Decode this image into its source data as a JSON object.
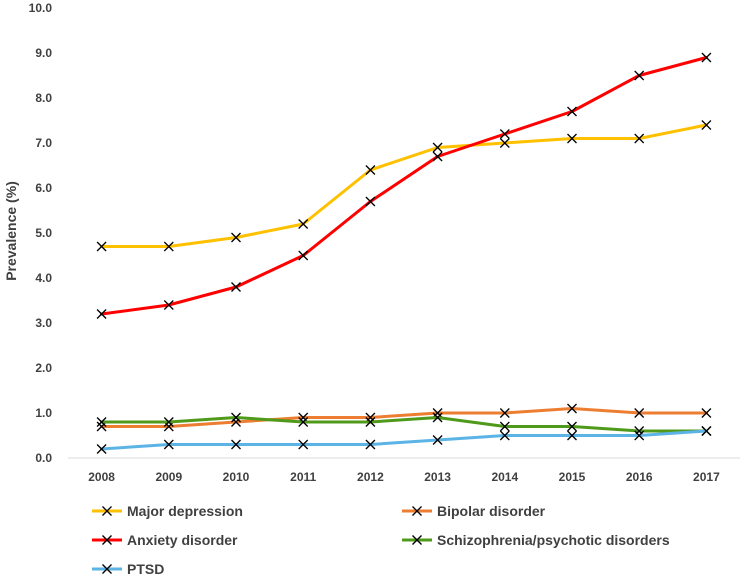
{
  "chart_data": {
    "type": "line",
    "ylabel": "Prevalence (%)",
    "ylim": [
      0,
      10
    ],
    "y_ticks": [
      "0.0",
      "1.0",
      "2.0",
      "3.0",
      "4.0",
      "5.0",
      "6.0",
      "7.0",
      "8.0",
      "9.0",
      "10.0"
    ],
    "x": [
      "2008",
      "2009",
      "2010",
      "2011",
      "2012",
      "2013",
      "2014",
      "2015",
      "2016",
      "2017"
    ],
    "grid": false,
    "legend_position": "bottom",
    "series": [
      {
        "name": "Major depression",
        "color": "#FFC000",
        "values": [
          4.7,
          4.7,
          4.9,
          5.2,
          6.4,
          6.9,
          7.0,
          7.1,
          7.1,
          7.4
        ]
      },
      {
        "name": "Bipolar disorder",
        "color": "#ED7D31",
        "values": [
          0.7,
          0.7,
          0.8,
          0.9,
          0.9,
          1.0,
          1.0,
          1.1,
          1.0,
          1.0
        ]
      },
      {
        "name": "Anxiety disorder",
        "color": "#FF0000",
        "values": [
          3.2,
          3.4,
          3.8,
          4.5,
          5.7,
          6.7,
          7.2,
          7.7,
          8.5,
          8.9
        ]
      },
      {
        "name": "Schizophrenia/psychotic disorders",
        "color": "#4F9A1A",
        "values": [
          0.8,
          0.8,
          0.9,
          0.8,
          0.8,
          0.9,
          0.7,
          0.7,
          0.6,
          0.6
        ]
      },
      {
        "name": "PTSD",
        "color": "#5BB4E5",
        "values": [
          0.2,
          0.3,
          0.3,
          0.3,
          0.3,
          0.4,
          0.5,
          0.5,
          0.5,
          0.6
        ]
      }
    ],
    "marker": "x"
  }
}
